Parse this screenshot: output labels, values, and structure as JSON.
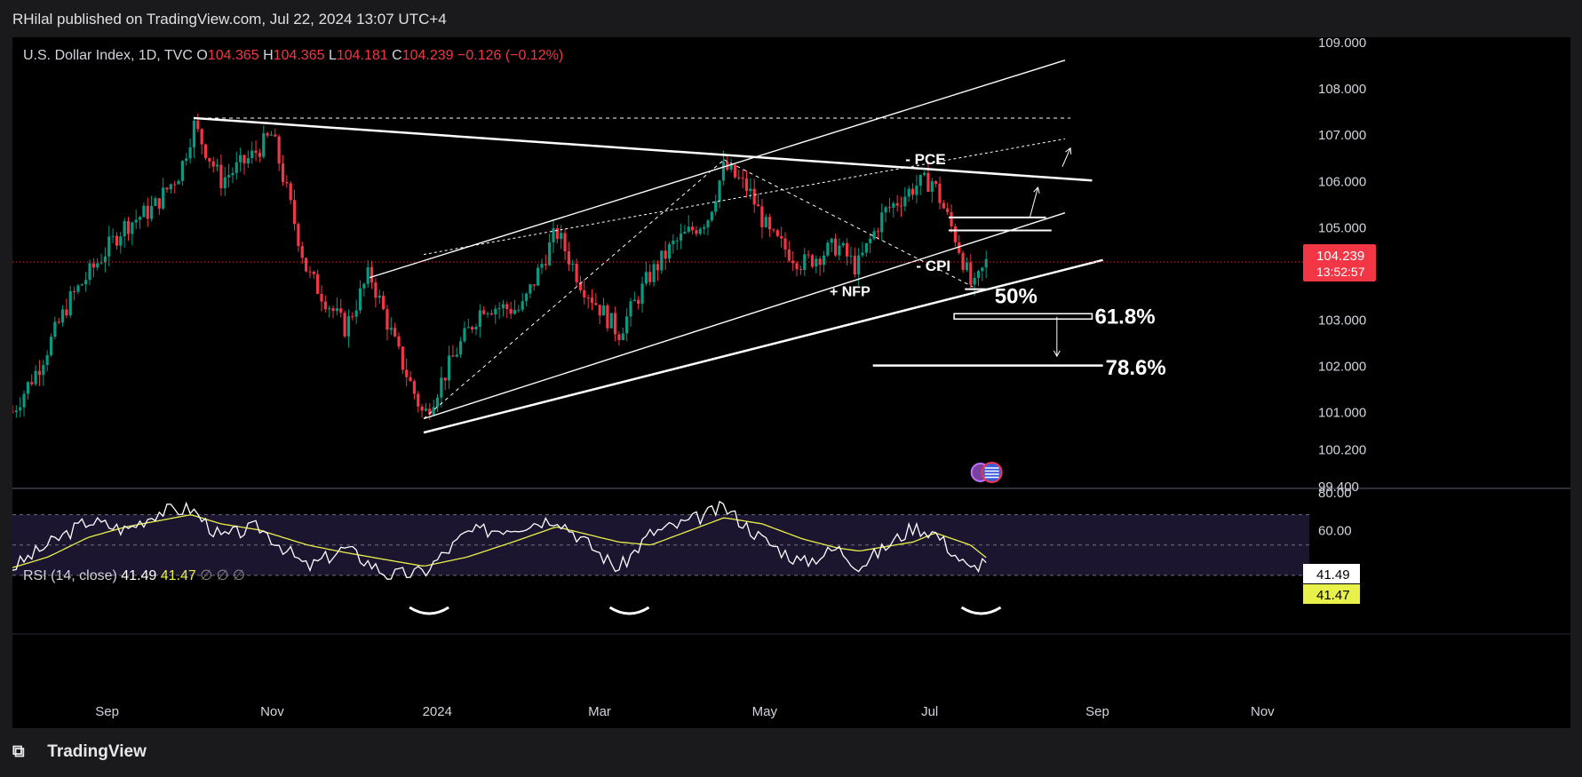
{
  "header": {
    "published": "RHilal published on TradingView.com, Jul 22, 2024 13:07 UTC+4"
  },
  "legend": {
    "symbol": "U.S. Dollar Index, 1D, TVC",
    "open_label": "O",
    "open": "104.365",
    "high_label": "H",
    "high": "104.365",
    "low_label": "L",
    "low": "104.181",
    "close_label": "C",
    "close": "104.239",
    "change": "−0.126 (−0.12%)"
  },
  "rsi_legend": {
    "name": "RSI (14, close)",
    "rsi": "41.49",
    "ma": "41.47",
    "empty": "∅  ∅  ∅"
  },
  "price_scale": [
    "109.000",
    "108.000",
    "107.000",
    "106.000",
    "105.000",
    "103.000",
    "102.000",
    "101.000",
    "100.200",
    "99.400"
  ],
  "price_badge": {
    "price": "104.239",
    "countdown": "13:52:57",
    "color": "#f23645"
  },
  "rsi_scale": [
    "80.00",
    "60.00"
  ],
  "rsi_badges": {
    "rsi": "41.49",
    "ma": "41.47"
  },
  "time_axis": [
    "Sep",
    "Nov",
    "2024",
    "Mar",
    "May",
    "Jul",
    "Sep",
    "Nov"
  ],
  "annotations": {
    "pce": "- PCE",
    "cpi": "- CPI",
    "nfp": "+ NFP",
    "fib50": "50%",
    "fib618": "61.8%",
    "fib786": "78.6%"
  },
  "brand": "TradingView",
  "colors": {
    "up": "#089981",
    "down": "#f23645",
    "rsi": "#ffffff",
    "rsi_ma": "#e8f04a",
    "bg": "#000000"
  },
  "chart_data": {
    "type": "line",
    "title": "U.S. Dollar Index, 1D, TVC",
    "x_range": [
      "2023-07-28",
      "2024-11-15"
    ],
    "y_range": [
      99.4,
      109.0
    ],
    "series": [
      {
        "x": [
          "2023-07-28",
          "2023-08-07",
          "2023-08-18",
          "2023-08-28",
          "2023-09-07",
          "2023-09-18",
          "2023-09-28",
          "2023-10-03",
          "2023-10-13",
          "2023-10-24",
          "2023-11-01",
          "2023-11-14",
          "2023-11-28",
          "2023-12-07",
          "2023-12-18",
          "2023-12-27",
          "2024-01-08",
          "2024-01-18",
          "2024-02-01",
          "2024-02-14",
          "2024-02-23",
          "2024-03-08",
          "2024-03-19",
          "2024-03-28",
          "2024-04-10",
          "2024-04-16",
          "2024-04-25",
          "2024-05-03",
          "2024-05-15",
          "2024-05-28",
          "2024-06-04",
          "2024-06-14",
          "2024-06-26",
          "2024-07-02",
          "2024-07-11",
          "2024-07-17",
          "2024-07-22"
        ],
        "values": [
          101.0,
          102.0,
          103.4,
          104.2,
          105.0,
          105.4,
          106.2,
          107.2,
          106.0,
          106.5,
          107.0,
          104.0,
          102.8,
          104.0,
          102.2,
          100.9,
          102.3,
          103.3,
          103.2,
          104.9,
          103.8,
          102.7,
          103.9,
          104.6,
          105.2,
          106.3,
          105.8,
          104.8,
          104.2,
          104.6,
          104.1,
          105.3,
          105.9,
          106.0,
          104.7,
          103.6,
          104.239
        ]
      }
    ],
    "annotations": [
      "- PCE",
      "- CPI",
      "+ NFP",
      "50%",
      "61.8%",
      "78.6%"
    ]
  },
  "rsi_data": {
    "x": [
      "2023-07-28",
      "2023-08-10",
      "2023-08-25",
      "2023-09-08",
      "2023-09-20",
      "2023-10-02",
      "2023-10-13",
      "2023-10-27",
      "2023-11-14",
      "2023-11-28",
      "2023-12-14",
      "2023-12-27",
      "2024-01-12",
      "2024-01-29",
      "2024-02-14",
      "2024-03-08",
      "2024-03-20",
      "2024-04-01",
      "2024-04-16",
      "2024-04-30",
      "2024-05-15",
      "2024-05-28",
      "2024-06-05",
      "2024-06-25",
      "2024-07-03",
      "2024-07-16",
      "2024-07-22"
    ],
    "values": [
      35,
      50,
      66,
      60,
      72,
      74,
      55,
      62,
      35,
      48,
      30,
      32,
      58,
      62,
      68,
      34,
      58,
      64,
      75,
      54,
      38,
      48,
      36,
      62,
      58,
      33,
      41.49
    ],
    "ma": [
      35,
      42,
      55,
      62,
      66,
      70,
      64,
      60,
      50,
      45,
      40,
      36,
      42,
      52,
      62,
      52,
      50,
      58,
      68,
      64,
      54,
      48,
      46,
      52,
      58,
      50,
      41.47
    ]
  }
}
